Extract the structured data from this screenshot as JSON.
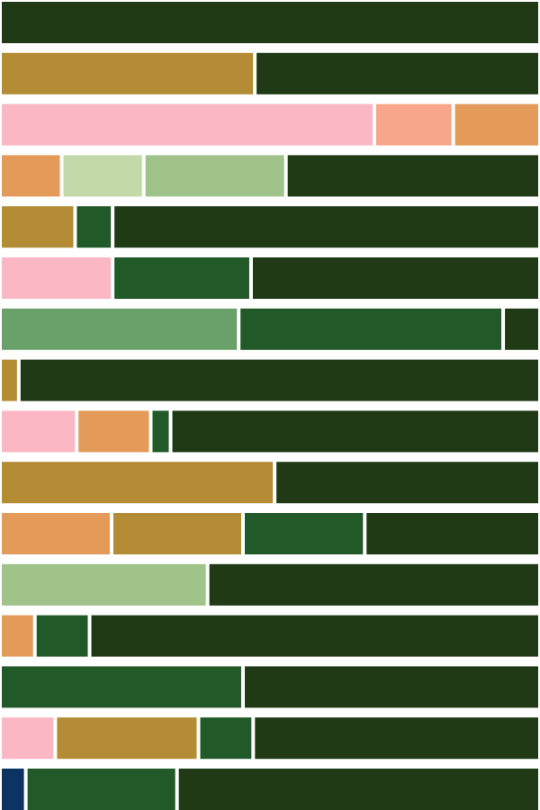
{
  "chart_data": {
    "type": "bar",
    "orientation": "horizontal",
    "stacked": true,
    "normalized": true,
    "xlim": [
      0,
      1
    ],
    "grid": false,
    "legend": "none",
    "title": "",
    "xlabel": "",
    "ylabel": "",
    "colors": {
      "dark-green": "#203a16",
      "medium-green": "#215a28",
      "sage-green": "#6aa16a",
      "light-green": "#9fc389",
      "pale-green": "#c4d9aa",
      "ochre": "#b48c36",
      "orange": "#e49b5a",
      "salmon": "#f8a68a",
      "pink": "#fbb8c4",
      "navy": "#0c3462"
    },
    "rows": [
      {
        "segments": [
          {
            "color": "dark-green",
            "value": 1.0
          }
        ]
      },
      {
        "segments": [
          {
            "color": "ochre",
            "value": 0.475
          },
          {
            "color": "dark-green",
            "value": 0.525
          }
        ]
      },
      {
        "segments": [
          {
            "color": "pink",
            "value": 0.698
          },
          {
            "color": "salmon",
            "value": 0.147
          },
          {
            "color": "orange",
            "value": 0.155
          }
        ]
      },
      {
        "segments": [
          {
            "color": "orange",
            "value": 0.115
          },
          {
            "color": "pale-green",
            "value": 0.153
          },
          {
            "color": "light-green",
            "value": 0.265
          },
          {
            "color": "dark-green",
            "value": 0.467
          }
        ]
      },
      {
        "segments": [
          {
            "color": "ochre",
            "value": 0.14
          },
          {
            "color": "medium-green",
            "value": 0.07
          },
          {
            "color": "dark-green",
            "value": 0.79
          }
        ]
      },
      {
        "segments": [
          {
            "color": "pink",
            "value": 0.21
          },
          {
            "color": "medium-green",
            "value": 0.258
          },
          {
            "color": "dark-green",
            "value": 0.532
          }
        ]
      },
      {
        "segments": [
          {
            "color": "sage-green",
            "value": 0.445
          },
          {
            "color": "medium-green",
            "value": 0.493
          },
          {
            "color": "dark-green",
            "value": 0.062
          }
        ]
      },
      {
        "segments": [
          {
            "color": "ochre",
            "value": 0.035
          },
          {
            "color": "dark-green",
            "value": 0.965
          }
        ]
      },
      {
        "segments": [
          {
            "color": "pink",
            "value": 0.143
          },
          {
            "color": "orange",
            "value": 0.138
          },
          {
            "color": "medium-green",
            "value": 0.037
          },
          {
            "color": "dark-green",
            "value": 0.682
          }
        ]
      },
      {
        "segments": [
          {
            "color": "ochre",
            "value": 0.512
          },
          {
            "color": "dark-green",
            "value": 0.488
          }
        ]
      },
      {
        "segments": [
          {
            "color": "orange",
            "value": 0.208
          },
          {
            "color": "ochre",
            "value": 0.245
          },
          {
            "color": "medium-green",
            "value": 0.227
          },
          {
            "color": "dark-green",
            "value": 0.32
          }
        ]
      },
      {
        "segments": [
          {
            "color": "light-green",
            "value": 0.387
          },
          {
            "color": "dark-green",
            "value": 0.613
          }
        ]
      },
      {
        "segments": [
          {
            "color": "orange",
            "value": 0.065
          },
          {
            "color": "medium-green",
            "value": 0.102
          },
          {
            "color": "dark-green",
            "value": 0.833
          }
        ]
      },
      {
        "segments": [
          {
            "color": "medium-green",
            "value": 0.453
          },
          {
            "color": "dark-green",
            "value": 0.547
          }
        ]
      },
      {
        "segments": [
          {
            "color": "pink",
            "value": 0.103
          },
          {
            "color": "ochre",
            "value": 0.267
          },
          {
            "color": "medium-green",
            "value": 0.102
          },
          {
            "color": "dark-green",
            "value": 0.528
          }
        ]
      },
      {
        "segments": [
          {
            "color": "navy",
            "value": 0.048
          },
          {
            "color": "medium-green",
            "value": 0.282
          },
          {
            "color": "dark-green",
            "value": 0.67
          }
        ]
      }
    ]
  }
}
